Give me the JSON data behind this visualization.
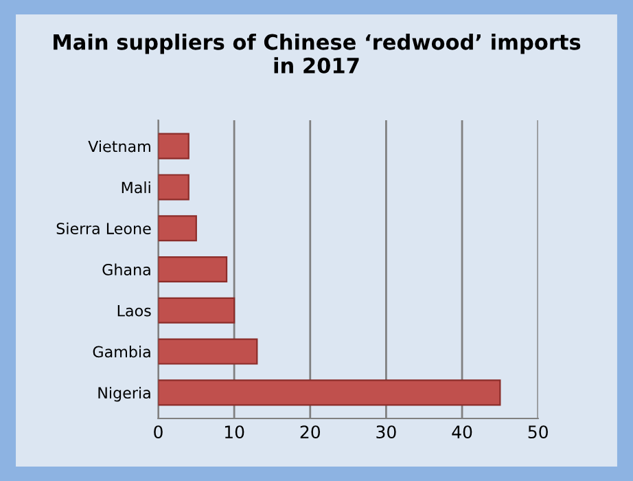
{
  "chart_data": {
    "type": "bar",
    "orientation": "horizontal",
    "title": "Main suppliers of Chinese ‘redwood’ imports\nin 2017",
    "categories": [
      "Vietnam",
      "Mali",
      "Sierra Leone",
      "Ghana",
      "Laos",
      "Gambia",
      "Nigeria"
    ],
    "values": [
      4,
      4,
      5,
      9,
      10,
      13,
      45
    ],
    "color": "#c0504d",
    "xlim": [
      0,
      50
    ],
    "xticks": [
      0,
      10,
      20,
      30,
      40,
      50
    ],
    "grid": "x",
    "legend": false
  }
}
